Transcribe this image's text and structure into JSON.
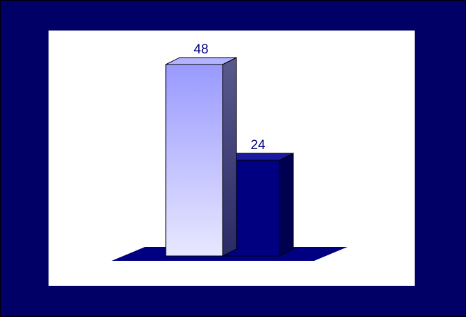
{
  "colors": {
    "frame_background": "#000066",
    "panel_background": "#ffffff",
    "floor": "#000080",
    "label_text": "#000080"
  },
  "chart_data": {
    "type": "bar",
    "style": "3d-column",
    "categories": [
      "",
      ""
    ],
    "values": [
      48,
      24
    ],
    "data_labels": [
      "48",
      "24"
    ],
    "series": [
      {
        "values": [
          48,
          24
        ],
        "colors": [
          "#9999ff",
          "#000080"
        ]
      }
    ],
    "title": "",
    "xlabel": "",
    "ylabel": "",
    "ylim": [
      0,
      50
    ],
    "grid": false,
    "legend": "none",
    "axes_visible": false,
    "bar_fills": [
      "gradient-light-blue",
      "solid-navy"
    ]
  }
}
